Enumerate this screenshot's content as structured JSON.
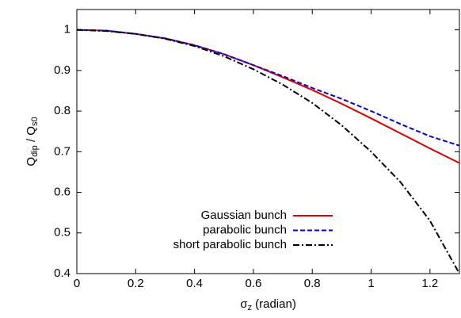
{
  "chart_data": {
    "type": "line",
    "ylabel": [
      "Q",
      "dip",
      " / Q",
      "s0"
    ],
    "xlabel": [
      "σ",
      "z",
      " (radian)"
    ],
    "x": [
      0,
      0.1,
      0.2,
      0.3,
      0.4,
      0.5,
      0.6,
      0.7,
      0.8,
      0.9,
      1.0,
      1.1,
      1.2,
      1.3
    ],
    "series": [
      {
        "name": "Gaussian bunch",
        "color": "#e00000",
        "dash": "solid",
        "values": [
          1,
          0.998,
          0.99,
          0.979,
          0.962,
          0.94,
          0.913,
          0.883,
          0.852,
          0.818,
          0.782,
          0.745,
          0.708,
          0.672
        ]
      },
      {
        "name": "parabolic bunch",
        "color": "#0000e0",
        "dash": "dashed",
        "values": [
          1,
          0.998,
          0.99,
          0.979,
          0.962,
          0.94,
          0.913,
          0.886,
          0.857,
          0.83,
          0.8,
          0.768,
          0.738,
          0.715
        ]
      },
      {
        "name": "short parabolic bunch",
        "color": "#000000",
        "dash": "dashdot",
        "values": [
          1,
          0.997,
          0.99,
          0.978,
          0.96,
          0.935,
          0.903,
          0.865,
          0.82,
          0.765,
          0.7,
          0.625,
          0.53,
          0.4
        ]
      }
    ],
    "xlim": [
      0,
      1.3
    ],
    "xticks": [
      0,
      0.2,
      0.4,
      0.6,
      0.8,
      1,
      1.2
    ],
    "ylim": [
      0.4,
      1.05
    ],
    "yticks": [
      0.4,
      0.5,
      0.6,
      0.7,
      0.8,
      0.9,
      1
    ],
    "grid": false,
    "legend": "bottom"
  }
}
